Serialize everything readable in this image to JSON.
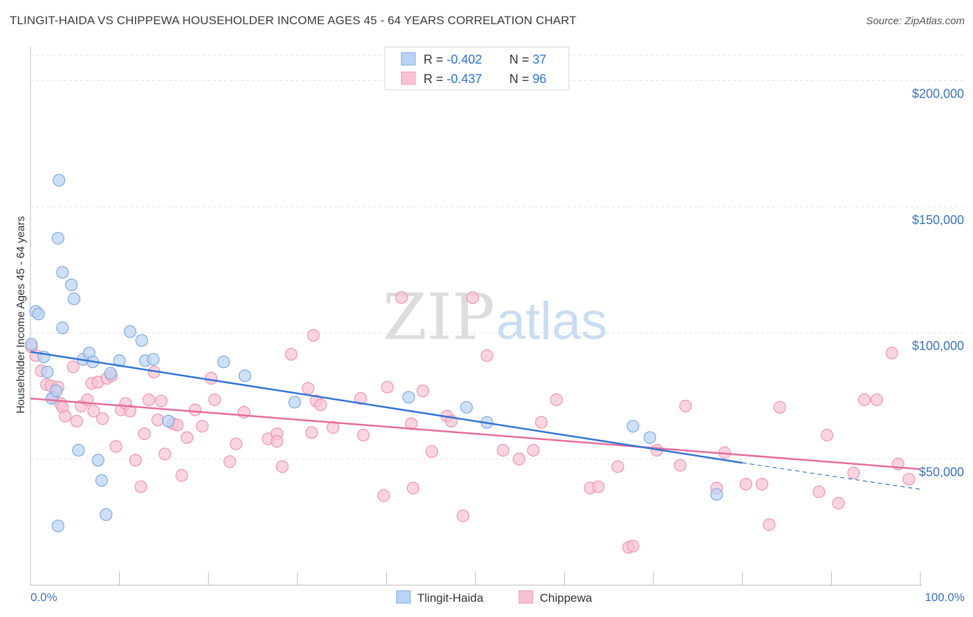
{
  "header": {
    "title": "TLINGIT-HAIDA VS CHIPPEWA HOUSEHOLDER INCOME AGES 45 - 64 YEARS CORRELATION CHART",
    "source": "Source: ZipAtlas.com"
  },
  "watermark": {
    "zip": "ZIP",
    "atlas": "atlas"
  },
  "legend_box": {
    "rows": [
      {
        "r_label": "R = ",
        "r_value": "-0.402",
        "n_label": "N = ",
        "n_value": "37"
      },
      {
        "r_label": "R = ",
        "r_value": "-0.437",
        "n_label": "N = ",
        "n_value": "96"
      }
    ]
  },
  "bottom_legend": [
    "Tlingit-Haida",
    "Chippewa"
  ],
  "colors": {
    "blue_fill": "#b8d3f5",
    "blue_stroke": "#7fa8e0",
    "blue_line": "#2f72d6",
    "pink_fill": "#f9c2d2",
    "pink_stroke": "#ee94b0",
    "pink_line": "#e56b98",
    "axis_text": "#3a72c8"
  },
  "chart_data": {
    "type": "scatter",
    "title": "TLINGIT-HAIDA VS CHIPPEWA HOUSEHOLDER INCOME AGES 45 - 64 YEARS CORRELATION CHART",
    "xlabel": "",
    "ylabel": "Householder Income Ages 45 - 64 years",
    "xlim": [
      0,
      100
    ],
    "ylim": [
      0,
      210000
    ],
    "x_tick_labels": [
      "0.0%",
      "100.0%"
    ],
    "y_ticks": [
      50000,
      100000,
      150000,
      200000
    ],
    "y_tick_labels": [
      "$50,000",
      "$100,000",
      "$150,000",
      "$200,000"
    ],
    "grid": true,
    "series": [
      {
        "name": "Tlingit-Haida",
        "r": -0.402,
        "n": 37,
        "trend": {
          "x0": 0,
          "y0": 92500,
          "x1": 80,
          "y1": 48500,
          "dash_x1": 100,
          "dash_y1": 38000
        },
        "points": [
          [
            0.1,
            95500
          ],
          [
            0.6,
            108500
          ],
          [
            0.9,
            107500
          ],
          [
            1.5,
            90500
          ],
          [
            1.9,
            84500
          ],
          [
            2.4,
            74000
          ],
          [
            2.9,
            77000
          ],
          [
            3.1,
            137500
          ],
          [
            3.1,
            23500
          ],
          [
            3.2,
            160500
          ],
          [
            3.6,
            124000
          ],
          [
            3.6,
            102000
          ],
          [
            4.6,
            119000
          ],
          [
            4.9,
            113500
          ],
          [
            5.4,
            53500
          ],
          [
            5.9,
            89500
          ],
          [
            6.6,
            92000
          ],
          [
            7.0,
            88500
          ],
          [
            7.6,
            49500
          ],
          [
            8.0,
            41500
          ],
          [
            8.5,
            28000
          ],
          [
            9.0,
            84000
          ],
          [
            10.0,
            89000
          ],
          [
            11.2,
            100500
          ],
          [
            12.5,
            97000
          ],
          [
            12.9,
            89000
          ],
          [
            13.8,
            89500
          ],
          [
            15.5,
            65000
          ],
          [
            21.7,
            88500
          ],
          [
            24.1,
            83000
          ],
          [
            29.7,
            72500
          ],
          [
            42.5,
            74500
          ],
          [
            49.0,
            70500
          ],
          [
            51.3,
            64500
          ],
          [
            67.7,
            63000
          ],
          [
            69.6,
            58500
          ],
          [
            77.1,
            36000
          ]
        ]
      },
      {
        "name": "Chippewa",
        "r": -0.437,
        "n": 96,
        "trend": {
          "x0": 0,
          "y0": 74000,
          "x1": 100,
          "y1": 46000
        },
        "points": [
          [
            0.1,
            94500
          ],
          [
            0.6,
            91000
          ],
          [
            1.2,
            85000
          ],
          [
            1.8,
            79500
          ],
          [
            2.3,
            79000
          ],
          [
            2.6,
            74500
          ],
          [
            3.1,
            78500
          ],
          [
            3.4,
            72000
          ],
          [
            3.6,
            70500
          ],
          [
            3.9,
            67000
          ],
          [
            4.8,
            86500
          ],
          [
            5.2,
            65000
          ],
          [
            5.7,
            71000
          ],
          [
            6.4,
            73500
          ],
          [
            6.9,
            80000
          ],
          [
            7.1,
            69000
          ],
          [
            7.6,
            80500
          ],
          [
            8.1,
            66000
          ],
          [
            8.6,
            82000
          ],
          [
            9.1,
            83000
          ],
          [
            9.6,
            55000
          ],
          [
            10.2,
            69500
          ],
          [
            10.7,
            72000
          ],
          [
            11.2,
            69000
          ],
          [
            11.8,
            49500
          ],
          [
            12.4,
            39000
          ],
          [
            12.8,
            60000
          ],
          [
            13.3,
            73500
          ],
          [
            13.9,
            84500
          ],
          [
            14.3,
            65500
          ],
          [
            14.7,
            73000
          ],
          [
            15.1,
            52000
          ],
          [
            16.0,
            64000
          ],
          [
            16.5,
            63500
          ],
          [
            17.0,
            43500
          ],
          [
            17.6,
            58500
          ],
          [
            18.5,
            69500
          ],
          [
            19.3,
            63000
          ],
          [
            20.3,
            82000
          ],
          [
            20.7,
            73500
          ],
          [
            22.4,
            49000
          ],
          [
            23.1,
            56000
          ],
          [
            24.0,
            68500
          ],
          [
            26.7,
            58000
          ],
          [
            27.7,
            60000
          ],
          [
            27.7,
            57000
          ],
          [
            28.3,
            47000
          ],
          [
            29.3,
            91500
          ],
          [
            31.6,
            60500
          ],
          [
            31.8,
            99000
          ],
          [
            31.2,
            78000
          ],
          [
            32.1,
            73000
          ],
          [
            32.6,
            71500
          ],
          [
            34.0,
            62500
          ],
          [
            37.1,
            74000
          ],
          [
            37.4,
            59500
          ],
          [
            39.7,
            35500
          ],
          [
            40.1,
            78500
          ],
          [
            41.7,
            114000
          ],
          [
            42.8,
            64000
          ],
          [
            43.0,
            38500
          ],
          [
            44.1,
            77000
          ],
          [
            45.1,
            53000
          ],
          [
            46.8,
            67000
          ],
          [
            47.3,
            65000
          ],
          [
            48.6,
            27500
          ],
          [
            49.7,
            114000
          ],
          [
            51.3,
            91000
          ],
          [
            53.1,
            53500
          ],
          [
            54.9,
            50000
          ],
          [
            56.5,
            53500
          ],
          [
            57.4,
            64500
          ],
          [
            59.1,
            73500
          ],
          [
            62.9,
            38500
          ],
          [
            63.8,
            39000
          ],
          [
            66.0,
            47000
          ],
          [
            67.2,
            15000
          ],
          [
            67.7,
            15500
          ],
          [
            70.4,
            53500
          ],
          [
            73.0,
            47500
          ],
          [
            73.6,
            71000
          ],
          [
            77.1,
            38500
          ],
          [
            78.0,
            52500
          ],
          [
            80.4,
            40000
          ],
          [
            82.2,
            40000
          ],
          [
            83.0,
            24000
          ],
          [
            84.2,
            70500
          ],
          [
            88.6,
            37000
          ],
          [
            89.5,
            59500
          ],
          [
            90.8,
            32500
          ],
          [
            92.5,
            44500
          ],
          [
            93.7,
            73500
          ],
          [
            95.1,
            73500
          ],
          [
            96.8,
            92000
          ],
          [
            97.5,
            48000
          ],
          [
            98.7,
            42000
          ]
        ]
      }
    ]
  }
}
